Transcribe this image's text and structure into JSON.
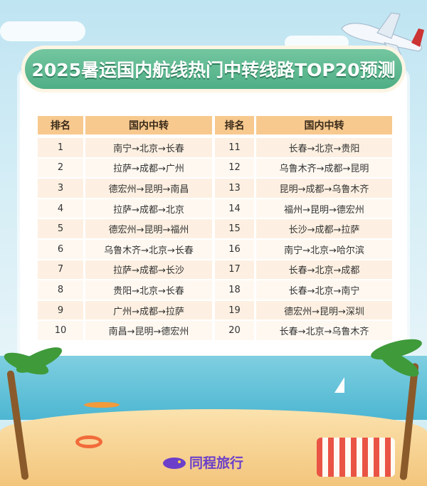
{
  "title": "2025暑运国内航线热门中转线路TOP20预测",
  "headers": {
    "rank": "排名",
    "route": "国内中转"
  },
  "left": [
    {
      "rank": "1",
      "route": "南宁→北京→长春"
    },
    {
      "rank": "2",
      "route": "拉萨→成都→广州"
    },
    {
      "rank": "3",
      "route": "德宏州→昆明→南昌"
    },
    {
      "rank": "4",
      "route": "拉萨→成都→北京"
    },
    {
      "rank": "5",
      "route": "德宏州→昆明→福州"
    },
    {
      "rank": "6",
      "route": "乌鲁木齐→北京→长春"
    },
    {
      "rank": "7",
      "route": "拉萨→成都→长沙"
    },
    {
      "rank": "8",
      "route": "贵阳→北京→长春"
    },
    {
      "rank": "9",
      "route": "广州→成都→拉萨"
    },
    {
      "rank": "10",
      "route": "南昌→昆明→德宏州"
    }
  ],
  "right": [
    {
      "rank": "11",
      "route": "长春→北京→贵阳"
    },
    {
      "rank": "12",
      "route": "乌鲁木齐→成都→昆明"
    },
    {
      "rank": "13",
      "route": "昆明→成都→乌鲁木齐"
    },
    {
      "rank": "14",
      "route": "福州→昆明→德宏州"
    },
    {
      "rank": "15",
      "route": "长沙→成都→拉萨"
    },
    {
      "rank": "16",
      "route": "南宁→北京→哈尔滨"
    },
    {
      "rank": "17",
      "route": "长春→北京→成都"
    },
    {
      "rank": "18",
      "route": "长春→北京→南宁"
    },
    {
      "rank": "19",
      "route": "德宏州→昆明→深圳"
    },
    {
      "rank": "20",
      "route": "长春→北京→乌鲁木齐"
    }
  ],
  "logo": {
    "text": "同程旅行",
    "icon": "tongcheng-logo-icon",
    "color": "#6b3fc9"
  },
  "colors": {
    "title_green": "#4fae85",
    "header": "#f7c98e"
  }
}
